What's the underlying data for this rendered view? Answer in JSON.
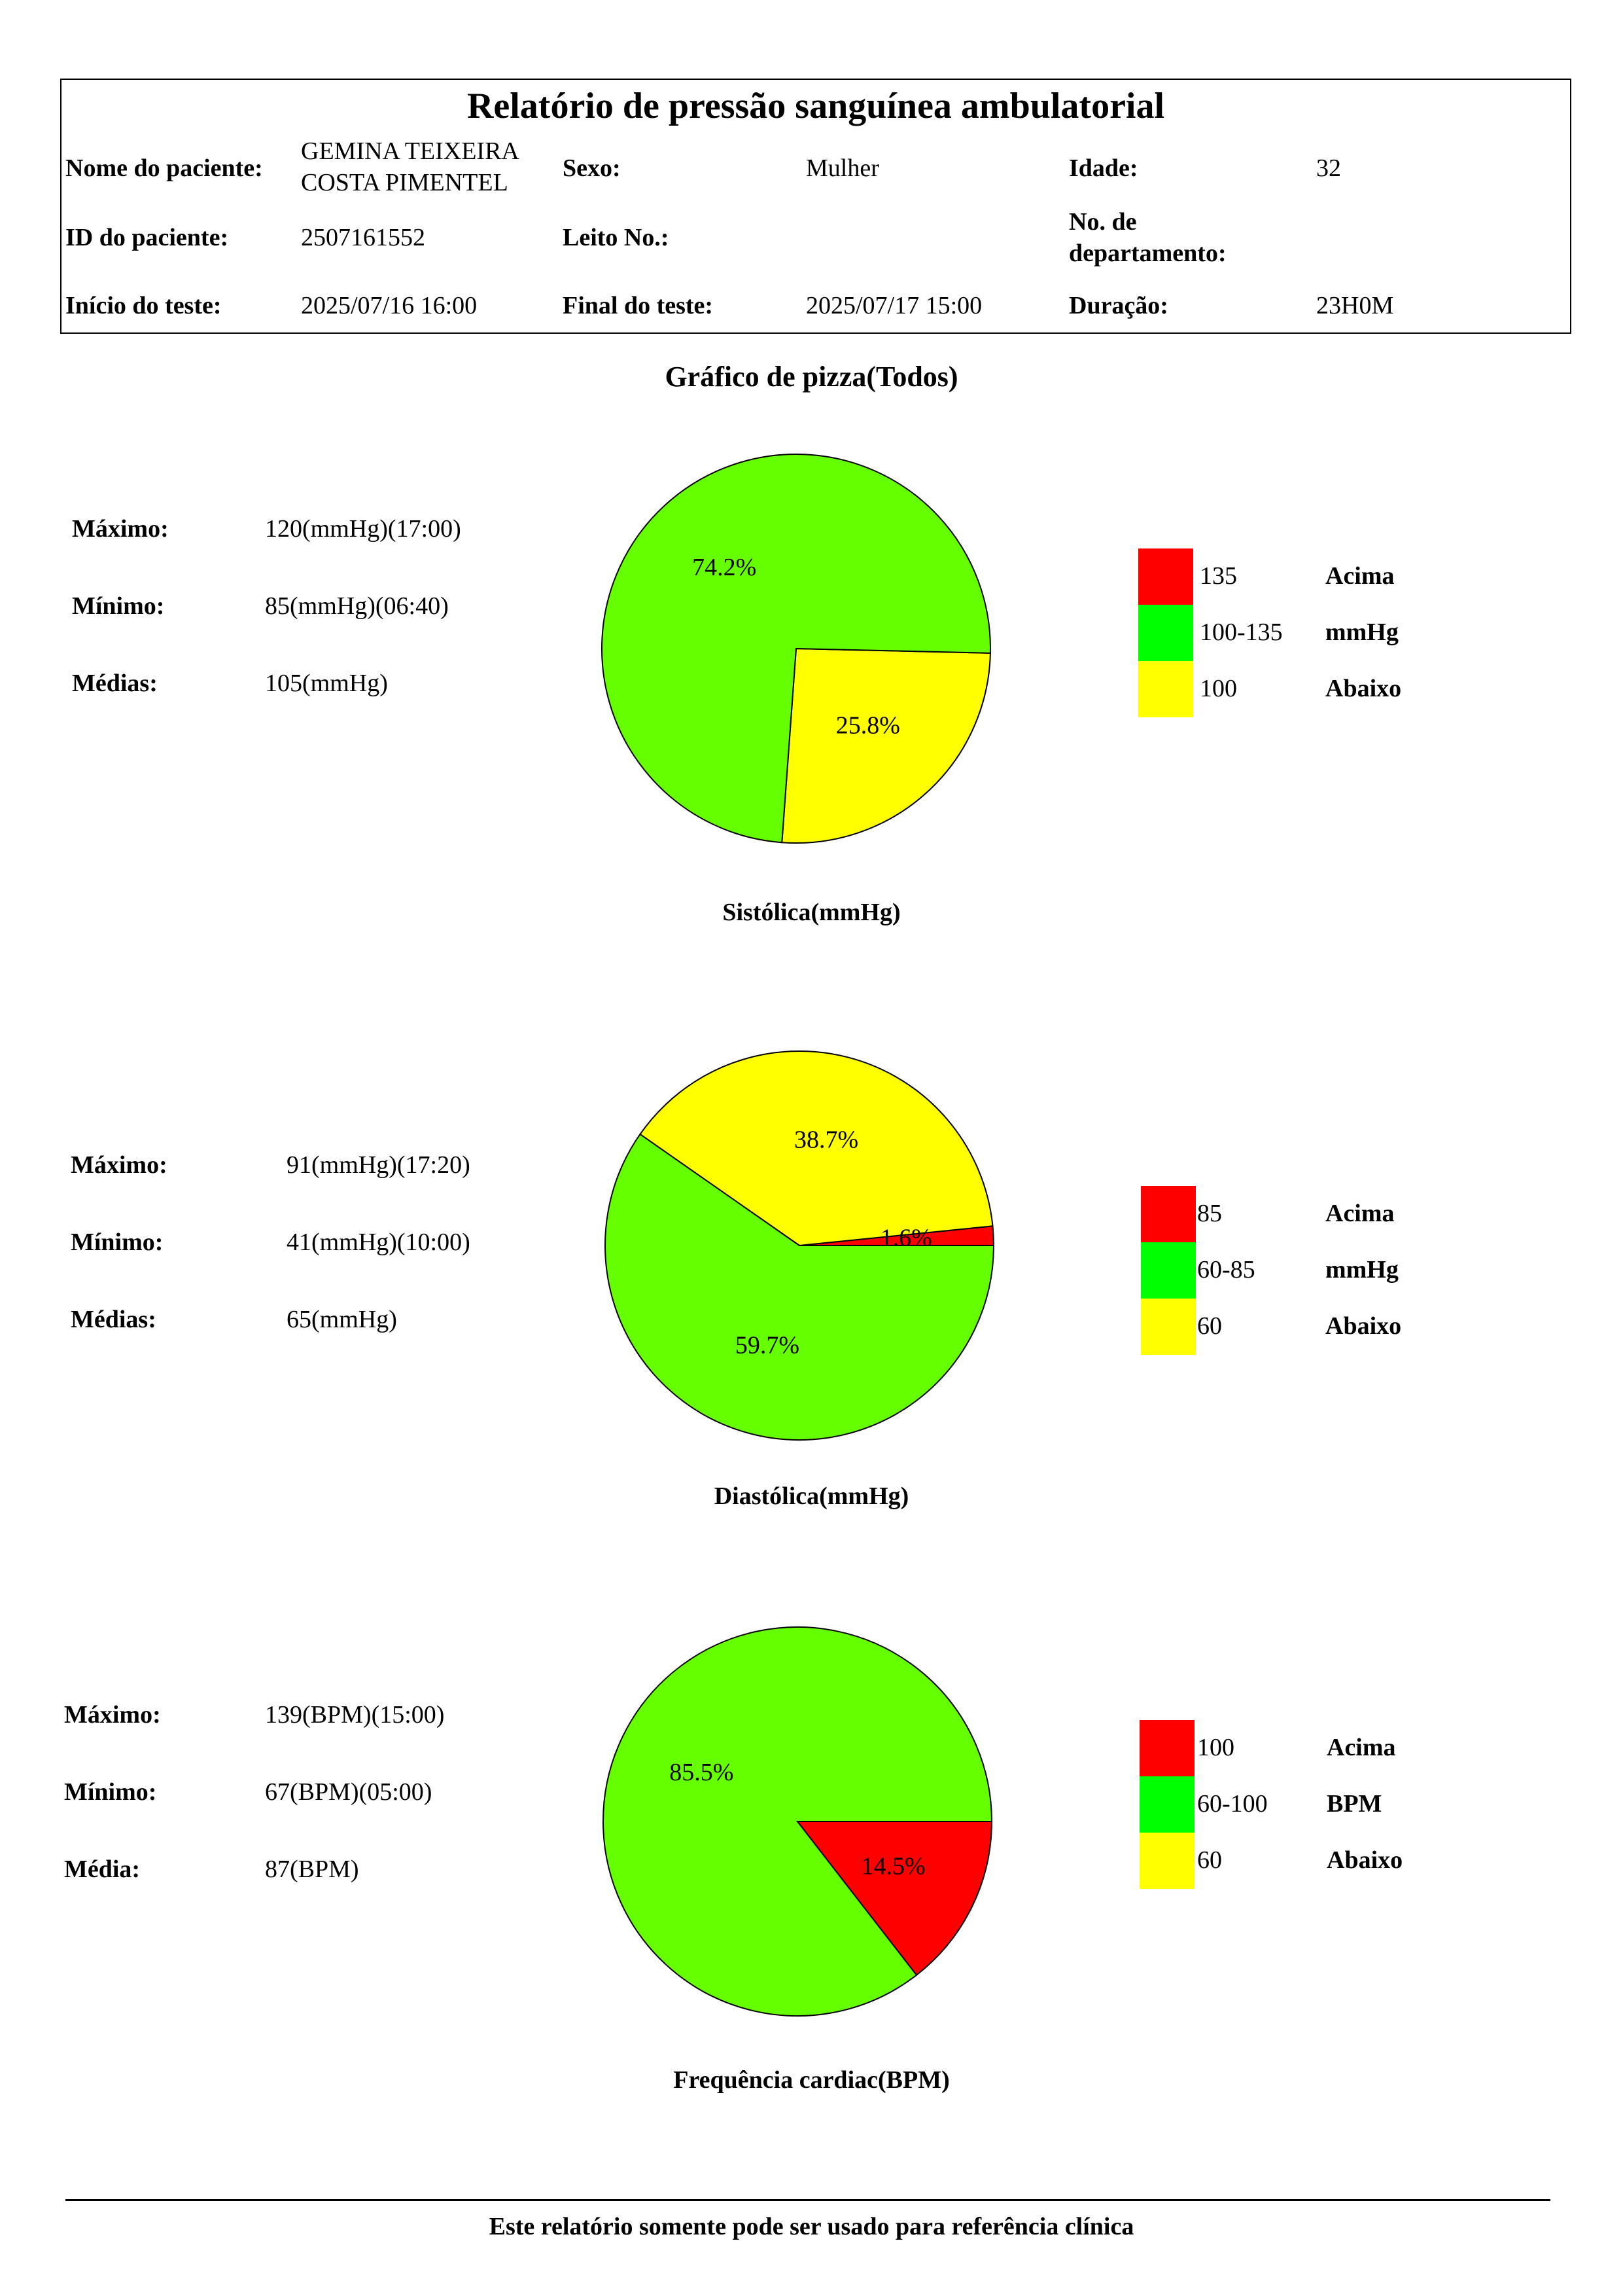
{
  "header": {
    "title": "Relatório de pressão sanguínea ambulatorial",
    "patient_name_label": "Nome do paciente:",
    "patient_name_line1": "GEMINA TEIXEIRA",
    "patient_name_line2": "COSTA PIMENTEL",
    "sex_label": "Sexo:",
    "sex_value": "Mulher",
    "age_label": "Idade:",
    "age_value": "32",
    "patient_id_label": "ID do paciente:",
    "patient_id_value": "2507161552",
    "bed_label": "Leito No.:",
    "bed_value": "",
    "department_label_line1": "No. de",
    "department_label_line2": "departamento:",
    "department_value": "",
    "start_label": "Início do teste:",
    "start_value": "2025/07/16 16:00",
    "end_label": "Final do teste:",
    "end_value": "2025/07/17 15:00",
    "duration_label": "Duração:",
    "duration_value": "23H0M"
  },
  "section_title": "Gráfico de pizza(Todos)",
  "systolic": {
    "max_label": "Máximo:",
    "max_value": "120(mmHg)(17:00)",
    "min_label": "Mínimo:",
    "min_value": "85(mmHg)(06:40)",
    "avg_label": "Médias:",
    "avg_value": "105(mmHg)",
    "legend": [
      {
        "range": "135",
        "text": "Acima",
        "color": "#ff0000"
      },
      {
        "range": "100-135",
        "text": "mmHg",
        "color": "#00ff00"
      },
      {
        "range": "100",
        "text": "Abaixo",
        "color": "#ffff00"
      }
    ]
  },
  "diastolic": {
    "max_label": "Máximo:",
    "max_value": "91(mmHg)(17:20)",
    "min_label": "Mínimo:",
    "min_value": "41(mmHg)(10:00)",
    "avg_label": "Médias:",
    "avg_value": "65(mmHg)",
    "legend": [
      {
        "range": "85",
        "text": "Acima",
        "color": "#ff0000"
      },
      {
        "range": "60-85",
        "text": "mmHg",
        "color": "#00ff00"
      },
      {
        "range": "60",
        "text": "Abaixo",
        "color": "#ffff00"
      }
    ]
  },
  "heart_rate": {
    "max_label": "Máximo:",
    "max_value": "139(BPM)(15:00)",
    "min_label": "Mínimo:",
    "min_value": "67(BPM)(05:00)",
    "avg_label": "Média:",
    "avg_value": "87(BPM)",
    "legend": [
      {
        "range": "100",
        "text": "Acima",
        "color": "#ff0000"
      },
      {
        "range": "60-100",
        "text": "BPM",
        "color": "#00ff00"
      },
      {
        "range": "60",
        "text": "Abaixo",
        "color": "#ffff00"
      }
    ]
  },
  "chart_data": [
    {
      "type": "pie",
      "title": "Sistólica(mmHg)",
      "slices": [
        {
          "label": "25.8%",
          "value": 25.8,
          "color": "#ffff00"
        },
        {
          "label": "74.2%",
          "value": 74.2,
          "color": "#66ff00"
        }
      ]
    },
    {
      "type": "pie",
      "title": "Diastólica(mmHg)",
      "slices": [
        {
          "label": "1.6%",
          "value": 1.6,
          "color": "#ff0000"
        },
        {
          "label": "38.7%",
          "value": 38.7,
          "color": "#ffff00"
        },
        {
          "label": "59.7%",
          "value": 59.7,
          "color": "#66ff00"
        }
      ]
    },
    {
      "type": "pie",
      "title": "Frequência cardiac(BPM)",
      "slices": [
        {
          "label": "14.5%",
          "value": 14.5,
          "color": "#ff0000"
        },
        {
          "label": "85.5%",
          "value": 85.5,
          "color": "#66ff00"
        }
      ]
    }
  ],
  "footer": "Este relatório somente pode ser usado para referência clínica"
}
